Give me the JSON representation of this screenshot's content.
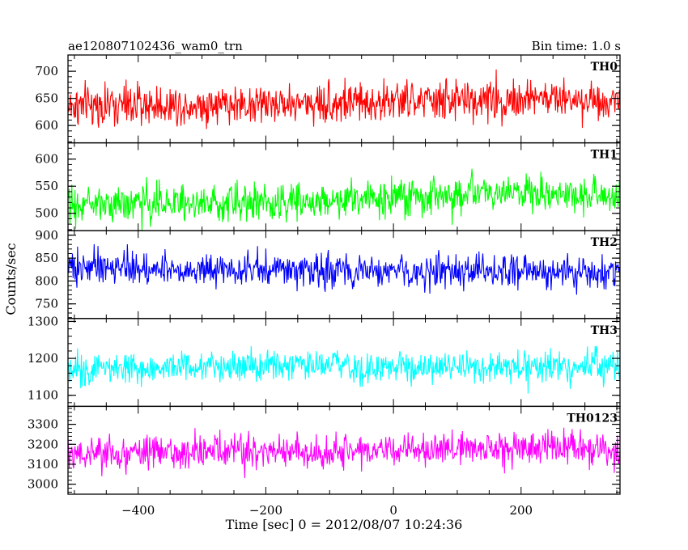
{
  "header": {
    "title": "ae120807102436_wam0_trn",
    "bin_time": "Bin time: 1.0 s"
  },
  "chart_data": {
    "type": "line",
    "x_range": [
      -510,
      355
    ],
    "n_points": 866,
    "x_ticks": [
      -400,
      -200,
      0,
      200
    ],
    "xlabel": "Time [sec] 0 = 2012/08/07 10:24:36",
    "ylabel": "Counts/sec",
    "grid": false,
    "panels": [
      {
        "name": "TH0",
        "color": "#ff0000",
        "mean": 636,
        "amplitude": 40,
        "trend": [
          [
            -510,
            0
          ],
          [
            -200,
            4
          ],
          [
            0,
            8
          ],
          [
            250,
            14
          ],
          [
            355,
            10
          ]
        ],
        "ylim": [
          568,
          730
        ],
        "y_ticks": [
          600,
          650,
          700
        ]
      },
      {
        "name": "TH1",
        "color": "#00ff00",
        "mean": 522,
        "amplitude": 36,
        "trend": [
          [
            -510,
            -6
          ],
          [
            -200,
            0
          ],
          [
            0,
            6
          ],
          [
            150,
            14
          ],
          [
            355,
            10
          ]
        ],
        "ylim": [
          468,
          630
        ],
        "y_ticks": [
          500,
          550,
          600
        ]
      },
      {
        "name": "TH2",
        "color": "#0000ff",
        "mean": 822,
        "amplitude": 38,
        "trend": [
          [
            -510,
            8
          ],
          [
            -200,
            4
          ],
          [
            0,
            -2
          ],
          [
            200,
            -4
          ],
          [
            355,
            -6
          ]
        ],
        "ylim": [
          718,
          910
        ],
        "y_ticks": [
          750,
          800,
          850,
          900
        ]
      },
      {
        "name": "TH3",
        "color": "#00ffff",
        "mean": 1175,
        "amplitude": 45,
        "trend": [
          [
            -510,
            0
          ],
          [
            -200,
            2
          ],
          [
            0,
            0
          ],
          [
            200,
            0
          ],
          [
            355,
            2
          ]
        ],
        "ylim": [
          1070,
          1308
        ],
        "y_ticks": [
          1100,
          1200,
          1300
        ]
      },
      {
        "name": "TH0123",
        "color": "#ff00ff",
        "mean": 3160,
        "amplitude": 90,
        "trend": [
          [
            -510,
            -10
          ],
          [
            -200,
            0
          ],
          [
            0,
            10
          ],
          [
            250,
            25
          ],
          [
            355,
            10
          ]
        ],
        "ylim": [
          2950,
          3390
        ],
        "y_ticks": [
          3000,
          3100,
          3200,
          3300
        ]
      }
    ]
  }
}
